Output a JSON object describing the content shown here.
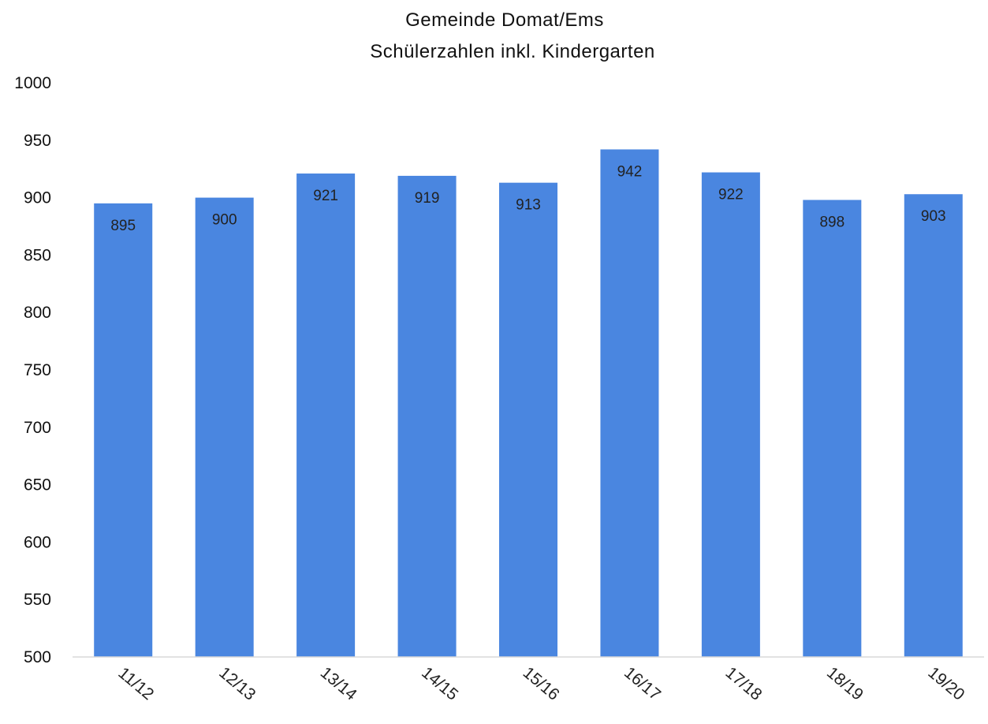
{
  "chart_data": {
    "type": "bar",
    "title": "Gemeinde Domat/Ems",
    "subtitle": "Schülerzahlen inkl. Kindergarten",
    "xlabel": "",
    "ylabel": "",
    "categories": [
      "11/12",
      "12/13",
      "13/14",
      "14/15",
      "15/16",
      "16/17",
      "17/18",
      "18/19",
      "19/20"
    ],
    "values": [
      895,
      900,
      921,
      919,
      913,
      942,
      922,
      898,
      903
    ],
    "data_labels": [
      "895",
      "900",
      "921",
      "919",
      "913",
      "942",
      "922",
      "898",
      "903"
    ],
    "ylim": [
      500,
      1000
    ],
    "yticks": [
      "500",
      "550",
      "600",
      "650",
      "700",
      "750",
      "800",
      "850",
      "900",
      "950",
      "1000"
    ],
    "grid": false,
    "legend": "none",
    "bar_color": "#4a86e0",
    "axis_color": "#d9d9d9"
  }
}
